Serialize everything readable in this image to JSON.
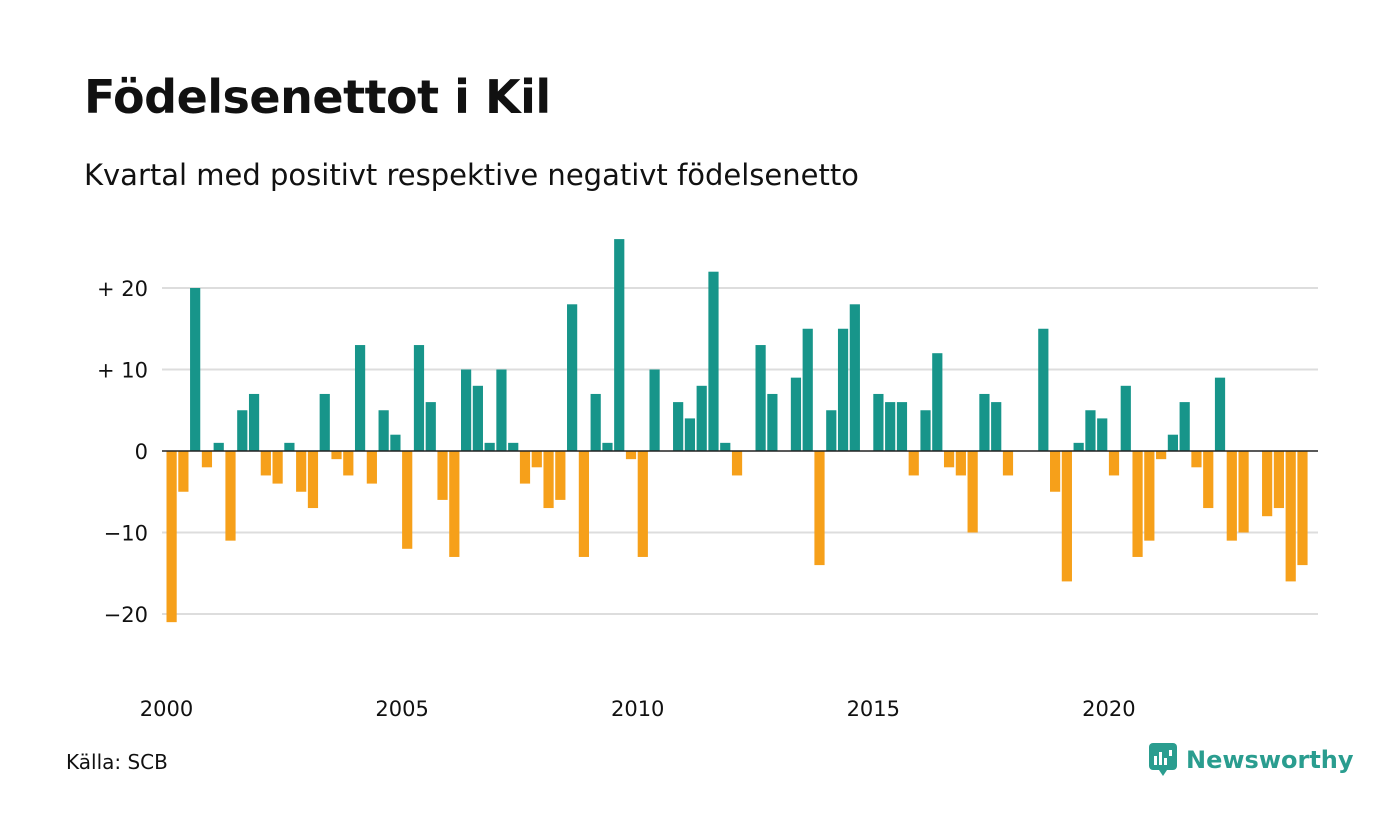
{
  "header": {
    "title": "Födelsenettot i Kil",
    "subtitle": "Kvartal med positivt respektive negativt födelsenetto"
  },
  "footer": {
    "source": "Källa: SCB",
    "brand": "Newsworthy",
    "brand_icon": "newsworthy-logo-icon"
  },
  "colors": {
    "positive": "#17958a",
    "negative": "#f6a01a",
    "grid": "#dddddd",
    "zero_line": "#222222",
    "brand": "#2a9d8f"
  },
  "chart_data": {
    "type": "bar",
    "title": "Födelsenettot i Kil",
    "subtitle": "Kvartal med positivt respektive negativt födelsenetto",
    "xlabel": "",
    "ylabel": "",
    "ylim": [
      -25,
      27
    ],
    "yticks": [
      20,
      10,
      0,
      -10,
      -20
    ],
    "ytick_labels": [
      "+ 20",
      "+ 10",
      "0",
      "−10",
      "−20"
    ],
    "xticks": [
      2000,
      2005,
      2010,
      2015,
      2020
    ],
    "xtick_labels": [
      "2000",
      "2005",
      "2010",
      "2015",
      "2020"
    ],
    "grid": true,
    "start_year": 2000,
    "start_quarter": 1,
    "values": [
      -21,
      -5,
      20,
      -2,
      1,
      -11,
      5,
      7,
      -3,
      -4,
      1,
      -5,
      -7,
      7,
      -1,
      -3,
      13,
      -4,
      5,
      2,
      -12,
      13,
      6,
      -6,
      -13,
      10,
      8,
      1,
      10,
      1,
      -4,
      -2,
      -7,
      -6,
      18,
      -13,
      7,
      1,
      26,
      -1,
      -13,
      10,
      0,
      6,
      4,
      8,
      22,
      1,
      -3,
      0,
      13,
      7,
      0,
      9,
      15,
      -14,
      5,
      15,
      18,
      0,
      7,
      6,
      6,
      -3,
      5,
      12,
      -2,
      -3,
      -10,
      7,
      6,
      -3,
      0,
      0,
      15,
      -5,
      -16,
      1,
      5,
      4,
      -3,
      8,
      -13,
      -11,
      -1,
      2,
      6,
      -2,
      -7,
      9,
      -11,
      -10,
      0,
      -8,
      -7,
      -16,
      -14
    ]
  }
}
